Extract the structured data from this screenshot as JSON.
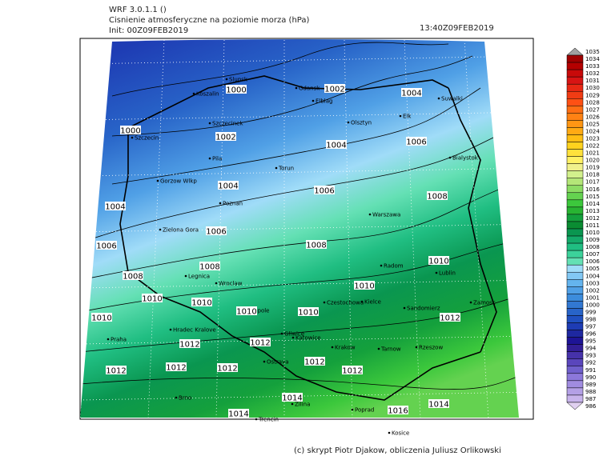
{
  "header": {
    "model": "WRF 3.0.1.1 ()",
    "title": "Cisnienie atmosferyczne na poziomie morza (hPa)",
    "init": "Init: 00Z09FEB2019",
    "valid": "13:40Z09FEB2019"
  },
  "footer": "(c) skrypt Piotr Djakow, obliczenia Juliusz Orlikowski",
  "cities": [
    "Slupsk",
    "Koszalin",
    "Gdansk",
    "Elblag",
    "Suwalki",
    "Elk",
    "Olsztyn",
    "Szczecinek",
    "Szczecin",
    "Bialystok",
    "Pila",
    "Torun",
    "Gorzow Wlkp",
    "Poznan",
    "Warszawa",
    "Zielona Gora",
    "Radom",
    "Lublin",
    "Legnica",
    "Wroclaw",
    "Opole",
    "Czestochowa",
    "Kielce",
    "Zamosc",
    "Sandomierz",
    "Praha",
    "Hradec Kralove",
    "Gliwice",
    "Katowice",
    "Krakow",
    "Tarnow",
    "Rzeszow",
    "Ostrava",
    "Brno",
    "Zilina",
    "Poprad",
    "Trencin",
    "Kosice"
  ],
  "isobar_labels": [
    1000,
    1002,
    1004,
    1000,
    1002,
    1004,
    1006,
    1004,
    1006,
    1008,
    1004,
    1006,
    1006,
    1008,
    1008,
    1010,
    1008,
    1010,
    1010,
    1010,
    1010,
    1010,
    1010,
    1012,
    1012,
    1012,
    1012,
    1012,
    1012,
    1012,
    1012,
    1014,
    1014,
    1014,
    1016
  ],
  "colorbar": [
    {
      "value": 1035,
      "color": "#a0a0a0"
    },
    {
      "value": 1034,
      "color": "#a00000"
    },
    {
      "value": 1033,
      "color": "#b40000"
    },
    {
      "value": 1032,
      "color": "#c80a0a"
    },
    {
      "value": 1031,
      "color": "#d81414"
    },
    {
      "value": 1030,
      "color": "#e82814"
    },
    {
      "value": 1029,
      "color": "#f03c14"
    },
    {
      "value": 1028,
      "color": "#ff5014"
    },
    {
      "value": 1027,
      "color": "#ff6e14"
    },
    {
      "value": 1026,
      "color": "#ff8214"
    },
    {
      "value": 1025,
      "color": "#ff9614"
    },
    {
      "value": 1024,
      "color": "#ffaa14"
    },
    {
      "value": 1023,
      "color": "#ffbe14"
    },
    {
      "value": 1022,
      "color": "#ffd21e"
    },
    {
      "value": 1021,
      "color": "#ffe13c"
    },
    {
      "value": 1020,
      "color": "#fff064"
    },
    {
      "value": 1019,
      "color": "#f0f08c"
    },
    {
      "value": 1018,
      "color": "#d2f08c"
    },
    {
      "value": 1017,
      "color": "#b4e678"
    },
    {
      "value": 1016,
      "color": "#8cdc64"
    },
    {
      "value": 1015,
      "color": "#64d250"
    },
    {
      "value": 1014,
      "color": "#3cc83c"
    },
    {
      "value": 1013,
      "color": "#28b432"
    },
    {
      "value": 1012,
      "color": "#14a03c"
    },
    {
      "value": 1011,
      "color": "#0a8c32"
    },
    {
      "value": 1010,
      "color": "#0a9650"
    },
    {
      "value": 1009,
      "color": "#14aa6a"
    },
    {
      "value": 1008,
      "color": "#20be82"
    },
    {
      "value": 1007,
      "color": "#3cd29a"
    },
    {
      "value": 1006,
      "color": "#64e0b4"
    },
    {
      "value": 1005,
      "color": "#a0dcf8"
    },
    {
      "value": 1004,
      "color": "#82c8f4"
    },
    {
      "value": 1003,
      "color": "#64b4ee"
    },
    {
      "value": 1002,
      "color": "#50a0e6"
    },
    {
      "value": 1001,
      "color": "#3c8cdc"
    },
    {
      "value": 1000,
      "color": "#3278d2"
    },
    {
      "value": 999,
      "color": "#2864c8"
    },
    {
      "value": 998,
      "color": "#2050c0"
    },
    {
      "value": 997,
      "color": "#1e3cb4"
    },
    {
      "value": 996,
      "color": "#1e28a0"
    },
    {
      "value": 995,
      "color": "#1e1496"
    },
    {
      "value": 994,
      "color": "#321e96"
    },
    {
      "value": 993,
      "color": "#4632aa"
    },
    {
      "value": 992,
      "color": "#5a46bc"
    },
    {
      "value": 991,
      "color": "#7060cc"
    },
    {
      "value": 990,
      "color": "#8c78da"
    },
    {
      "value": 989,
      "color": "#a08ce0"
    },
    {
      "value": 988,
      "color": "#b4a0e6"
    },
    {
      "value": 987,
      "color": "#c8b4ec"
    },
    {
      "value": 986,
      "color": "#e0d0f0"
    }
  ]
}
